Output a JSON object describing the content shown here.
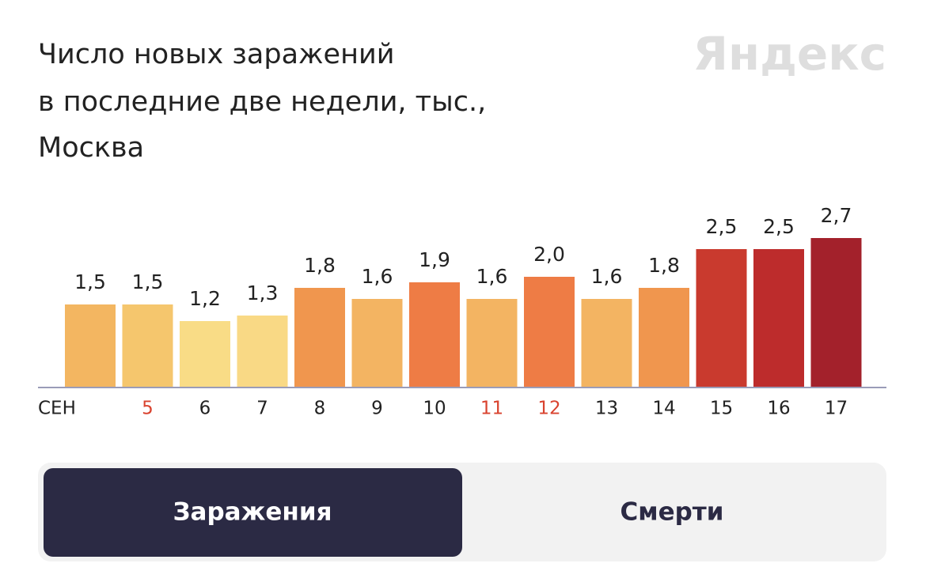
{
  "chart_data": {
    "type": "bar",
    "title": [
      "Число новых заражений",
      "в последние две недели, тыс.,",
      "Москва"
    ],
    "logo": "Яндекс",
    "categories": [
      "СЕН",
      "5",
      "6",
      "7",
      "8",
      "9",
      "10",
      "11",
      "12",
      "13",
      "14",
      "15",
      "16",
      "17"
    ],
    "category_colors": [
      "#222222",
      "#d9432f",
      "#222222",
      "#222222",
      "#222222",
      "#222222",
      "#222222",
      "#d9432f",
      "#d9432f",
      "#222222",
      "#222222",
      "#222222",
      "#222222",
      "#222222"
    ],
    "values": [
      1.5,
      1.5,
      1.2,
      1.3,
      1.8,
      1.6,
      1.9,
      1.6,
      2.0,
      1.6,
      1.8,
      2.5,
      2.5,
      2.7
    ],
    "value_labels": [
      "1,5",
      "1,5",
      "1,2",
      "1,3",
      "1,8",
      "1,6",
      "1,9",
      "1,6",
      "2,0",
      "1,6",
      "1,8",
      "2,5",
      "2,5",
      "2,7"
    ],
    "colors": [
      "#f3b661",
      "#f5c66d",
      "#f9dc86",
      "#f9d985",
      "#f0964e",
      "#f3b462",
      "#ee7c45",
      "#f3b462",
      "#ee7c45",
      "#f3b462",
      "#f0964e",
      "#c93a2e",
      "#bd2c2c",
      "#a3212b"
    ],
    "tabs": [
      "Заражения",
      "Смерти"
    ]
  }
}
